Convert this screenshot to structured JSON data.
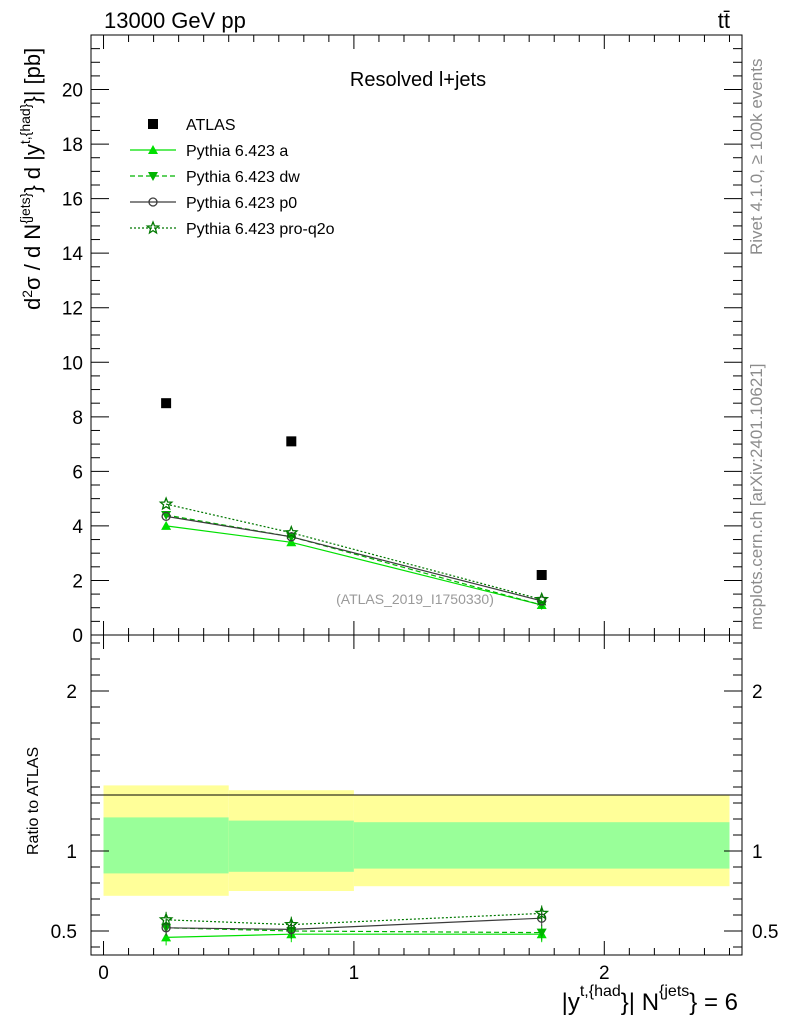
{
  "header": {
    "energy": "13000 GeV pp",
    "process": "tt̄"
  },
  "side_labels": {
    "rivet": "Rivet 4.1.0, ≥ 100k events",
    "site": "mcplots.cern.ch [arXiv:2401.10621]"
  },
  "colors": {
    "atlas": "#000000",
    "pythia_a": "#00e000",
    "pythia_dw": "#00b400",
    "pythia_p0": "#3c3c3c",
    "pythia_pro": "#007800",
    "band_inner": "#99ff99",
    "band_outer": "#ffff99"
  },
  "chart_data": [
    {
      "type": "scatter",
      "panel": "main",
      "title": "Resolved l+jets",
      "watermark": "(ATLAS_2019_I1750330)",
      "ylabel": "d²σ / d N^{jets} d |y^{t,{had}}| [pb]",
      "ylabel_parts": {
        "a": "d",
        "b": "2",
        "c": "σ / d N",
        "d": "{jets}",
        "e": "} d |y",
        "f": "t,{had}",
        "g": "}| [pb]"
      },
      "xlim": [
        -0.05,
        2.55
      ],
      "ylim": [
        0,
        22
      ],
      "yticks": [
        0,
        2,
        4,
        6,
        8,
        10,
        12,
        14,
        16,
        18,
        20
      ],
      "ytick_labels": [
        "0",
        "2",
        "4",
        "6",
        "8",
        "10",
        "12",
        "14",
        "16",
        "18",
        "20"
      ],
      "legend_position": "top-left",
      "x": [
        0.25,
        0.75,
        1.75
      ],
      "series": [
        {
          "name": "ATLAS",
          "marker": "square",
          "values": [
            8.5,
            7.1,
            2.2
          ]
        },
        {
          "name": "Pythia 6.423 a",
          "marker": "triangle-up",
          "line": "solid",
          "values": [
            4.0,
            3.4,
            1.1
          ]
        },
        {
          "name": "Pythia 6.423 dw",
          "marker": "triangle-down",
          "line": "dashed",
          "values": [
            4.4,
            3.6,
            1.1
          ]
        },
        {
          "name": "Pythia 6.423 p0",
          "marker": "circle-open",
          "line": "solid",
          "values": [
            4.35,
            3.6,
            1.25
          ]
        },
        {
          "name": "Pythia 6.423 pro-q2o",
          "marker": "star-open",
          "line": "dotted",
          "values": [
            4.8,
            3.75,
            1.3
          ]
        }
      ]
    },
    {
      "type": "scatter",
      "panel": "ratio",
      "ylabel": "Ratio to ATLAS",
      "xlabel": "|y^{t,{had}}| N^{jets} = 6",
      "xlabel_parts": {
        "a": "|y",
        "b": "t,{had",
        "c": "}| N",
        "d": "{jets",
        "e": "} = 6"
      },
      "xlim": [
        -0.05,
        2.55
      ],
      "ylim": [
        0.35,
        2.35
      ],
      "xticks": [
        0,
        1,
        2
      ],
      "xtick_labels": [
        "0",
        "1",
        "2"
      ],
      "yticks": [
        0.5,
        1,
        2
      ],
      "ytick_labels": [
        "0.5",
        "1",
        "2"
      ],
      "bins": [
        [
          0.0,
          0.5
        ],
        [
          0.5,
          1.0
        ],
        [
          1.0,
          2.5
        ]
      ],
      "band_inner": [
        [
          0.86,
          1.21
        ],
        [
          0.87,
          1.19
        ],
        [
          0.89,
          1.18
        ]
      ],
      "band_outer": [
        [
          0.72,
          1.41
        ],
        [
          0.75,
          1.38
        ],
        [
          0.78,
          1.35
        ]
      ],
      "x": [
        0.25,
        0.75,
        1.75
      ],
      "series": [
        {
          "name": "Pythia 6.423 a",
          "values": [
            0.46,
            0.48,
            0.48
          ]
        },
        {
          "name": "Pythia 6.423 dw",
          "values": [
            0.52,
            0.5,
            0.49
          ]
        },
        {
          "name": "Pythia 6.423 p0",
          "values": [
            0.52,
            0.51,
            0.58
          ]
        },
        {
          "name": "Pythia 6.423 pro-q2o",
          "values": [
            0.57,
            0.54,
            0.61
          ]
        }
      ]
    }
  ]
}
